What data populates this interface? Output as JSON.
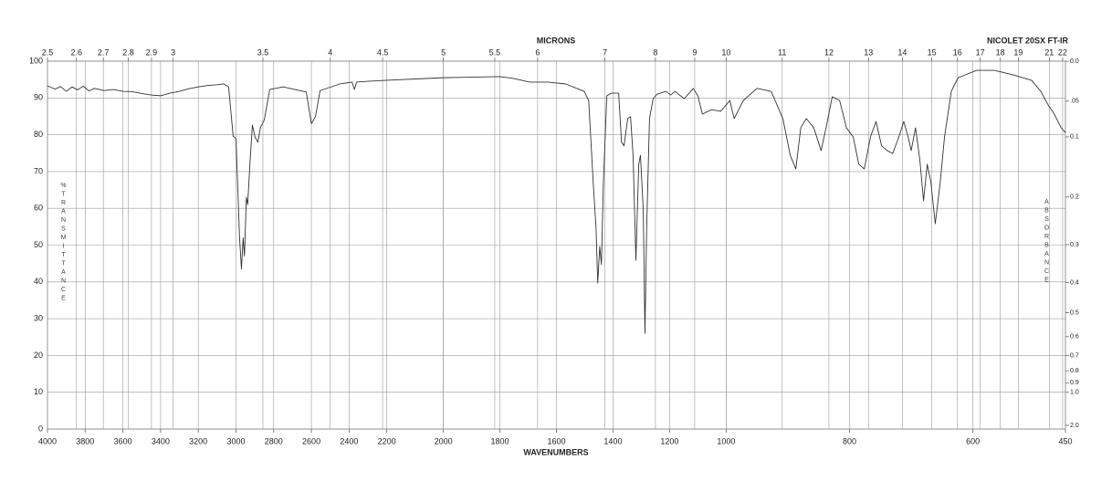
{
  "chart_data": {
    "type": "line",
    "title": "MICRONS",
    "x_label": "WAVENUMBERS",
    "annotation": "NICOLET 20SX FT-IR",
    "y_label": "%TRANSMITTANCE",
    "y2_label": "ABSORBANCE",
    "color": "#333333",
    "xlim": [
      4000,
      450
    ],
    "x_scale_breaks": [
      2200,
      1000
    ],
    "xticks": [
      4000,
      3800,
      3600,
      3400,
      3200,
      3000,
      2800,
      2600,
      2400,
      2200,
      2000,
      1800,
      1600,
      1400,
      1200,
      1000,
      800,
      600,
      450
    ],
    "x2_scale": "microns",
    "x2ticks": [
      2.5,
      2.6,
      2.7,
      2.8,
      2.9,
      3,
      3.5,
      4,
      4.5,
      5,
      5.5,
      6,
      7,
      8,
      9,
      10,
      11,
      12,
      13,
      14,
      15,
      16,
      17,
      18,
      19,
      21,
      22
    ],
    "ylim": [
      0,
      100
    ],
    "yticks": [
      0,
      10,
      20,
      30,
      40,
      50,
      60,
      70,
      80,
      90,
      100
    ],
    "y2_scale": "absorbance",
    "y2ticks": [
      {
        "value": 0,
        "label": "0.0"
      },
      {
        "value": 0.05,
        "label": ".05"
      },
      0.1,
      0.2,
      0.3,
      0.4,
      0.5,
      0.6,
      0.7,
      0.8,
      0.9,
      {
        "value": 1,
        "label": "1.0"
      },
      {
        "value": 2,
        "label": "2.0"
      }
    ],
    "grid": true,
    "x": [
      4000,
      3960,
      3930,
      3900,
      3870,
      3840,
      3810,
      3780,
      3750,
      3700,
      3650,
      3600,
      3550,
      3500,
      3450,
      3400,
      3350,
      3300,
      3250,
      3200,
      3150,
      3100,
      3064,
      3039,
      3015,
      3000,
      2981,
      2971,
      2962,
      2955,
      2945,
      2938,
      2925,
      2913,
      2899,
      2884,
      2870,
      2850,
      2821,
      2750,
      2627,
      2600,
      2578,
      2554,
      2450,
      2384,
      2372,
      2360,
      2312,
      2200,
      2000,
      1800,
      1752,
      1695,
      1631,
      1567,
      1502,
      1486,
      1470,
      1460,
      1454,
      1447,
      1441,
      1434,
      1422,
      1406,
      1380,
      1370,
      1361,
      1348,
      1338,
      1329,
      1319,
      1309,
      1303,
      1293,
      1287,
      1281,
      1271,
      1258,
      1245,
      1213,
      1196,
      1181,
      1148,
      1116,
      1100,
      1084,
      1052,
      1019,
      1000,
      994,
      987,
      972,
      950,
      927,
      908,
      896,
      887,
      879,
      870,
      858,
      846,
      838,
      828,
      816,
      805,
      794,
      785,
      776,
      766,
      757,
      748,
      739,
      730,
      720,
      712,
      705,
      700,
      693,
      686,
      680,
      674,
      668,
      661,
      653,
      646,
      635,
      624,
      594,
      565,
      535,
      505,
      490,
      478,
      468,
      457,
      450
    ],
    "values": [
      93.3,
      92.4,
      93.1,
      91.8,
      93.0,
      92.2,
      93.2,
      91.9,
      92.6,
      92.0,
      92.3,
      91.8,
      91.7,
      91.2,
      90.8,
      90.6,
      91.3,
      91.8,
      92.5,
      93.0,
      93.4,
      93.6,
      93.8,
      93.0,
      79.6,
      79.0,
      52.0,
      43.5,
      52.0,
      47.0,
      63.0,
      61.0,
      73.0,
      82.6,
      79.4,
      78.0,
      82.0,
      84.0,
      92.3,
      93.0,
      91.6,
      83.0,
      85.0,
      92.0,
      93.8,
      94.3,
      92.3,
      94.3,
      94.5,
      94.8,
      95.5,
      95.8,
      95.3,
      94.3,
      94.3,
      93.8,
      91.8,
      89.3,
      67.0,
      54.6,
      39.7,
      49.6,
      44.7,
      67.0,
      90.6,
      91.3,
      91.3,
      78.0,
      77.0,
      84.4,
      84.9,
      74.4,
      45.9,
      72.0,
      74.4,
      59.6,
      26.0,
      54.6,
      84.4,
      89.8,
      91.0,
      91.8,
      90.8,
      91.8,
      89.8,
      92.6,
      90.6,
      85.6,
      86.8,
      86.4,
      88.1,
      89.3,
      84.4,
      89.3,
      92.6,
      91.8,
      84.4,
      74.4,
      70.7,
      81.9,
      84.4,
      81.9,
      75.7,
      81.9,
      90.3,
      89.3,
      81.9,
      79.4,
      72.0,
      70.7,
      79.4,
      83.6,
      77.0,
      75.7,
      74.9,
      79.4,
      83.6,
      79.4,
      75.7,
      81.9,
      73.2,
      62.0,
      72.0,
      67.0,
      55.8,
      67.0,
      79.4,
      91.8,
      95.5,
      97.5,
      97.5,
      96.3,
      94.8,
      91.8,
      88.1,
      85.6,
      81.9,
      80.6
    ]
  }
}
